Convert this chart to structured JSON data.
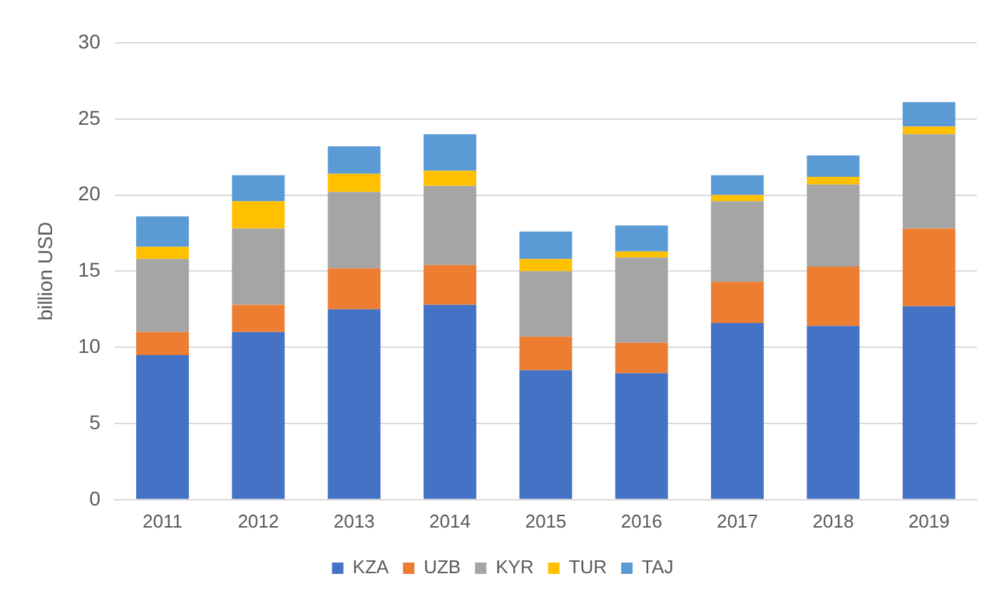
{
  "chart_data": {
    "type": "bar",
    "stacked": true,
    "ylabel": "billion USD",
    "categories": [
      "2011",
      "2012",
      "2013",
      "2014",
      "2015",
      "2016",
      "2017",
      "2018",
      "2019"
    ],
    "series": [
      {
        "name": "KZA",
        "color": "#4472c4",
        "values": [
          9.5,
          11.0,
          12.5,
          12.8,
          8.5,
          8.3,
          11.6,
          11.4,
          12.7
        ]
      },
      {
        "name": "UZB",
        "color": "#ed7d31",
        "values": [
          1.5,
          1.8,
          2.7,
          2.6,
          2.2,
          2.0,
          2.7,
          3.9,
          5.1
        ]
      },
      {
        "name": "KYR",
        "color": "#a5a5a5",
        "values": [
          4.8,
          5.0,
          5.0,
          5.2,
          4.3,
          5.6,
          5.3,
          5.4,
          6.2
        ]
      },
      {
        "name": "TUR",
        "color": "#ffc000",
        "values": [
          0.8,
          1.8,
          1.2,
          1.0,
          0.8,
          0.4,
          0.4,
          0.5,
          0.5
        ]
      },
      {
        "name": "TAJ",
        "color": "#5b9bd5",
        "values": [
          2.0,
          1.7,
          1.8,
          2.4,
          1.8,
          1.7,
          1.3,
          1.4,
          1.6
        ]
      }
    ],
    "ylim": [
      0,
      30
    ],
    "yticks": [
      0,
      5,
      10,
      15,
      20,
      25,
      30
    ],
    "grid": "y",
    "legend": "bottom"
  }
}
